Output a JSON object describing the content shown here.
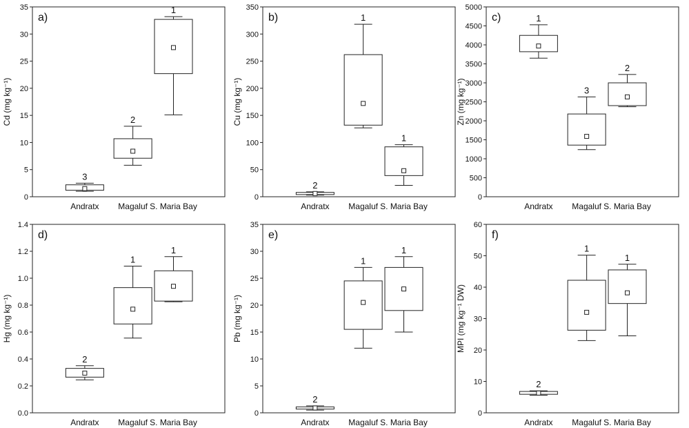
{
  "chart_data": [
    {
      "type": "box",
      "panel_label": "a)",
      "ylabel": "Cd (mg kg⁻¹)",
      "ylim": [
        0,
        35
      ],
      "yticks": [
        0,
        5,
        10,
        15,
        20,
        25,
        30,
        35
      ],
      "ytick_labels": [
        "0",
        "5",
        "10",
        "15",
        "20",
        "25",
        "30",
        "35"
      ],
      "categories": [
        "Andratx",
        "Magaluf",
        "S. Maria Bay"
      ],
      "boxes": [
        {
          "whisker_low": 1.0,
          "q1": 1.2,
          "median": 1.5,
          "q3": 2.2,
          "whisker_high": 2.5,
          "group": "3"
        },
        {
          "whisker_low": 5.8,
          "q1": 7.1,
          "median": 8.4,
          "q3": 10.7,
          "whisker_high": 13.0,
          "group": "2"
        },
        {
          "whisker_low": 15.1,
          "q1": 22.7,
          "median": 27.5,
          "q3": 32.7,
          "whisker_high": 33.2,
          "group": "1"
        }
      ]
    },
    {
      "type": "box",
      "panel_label": "b)",
      "ylabel": "Cu (mg kg⁻¹)",
      "ylim": [
        0,
        350
      ],
      "yticks": [
        0,
        50,
        100,
        150,
        200,
        250,
        300,
        350
      ],
      "ytick_labels": [
        "0",
        "50",
        "100",
        "150",
        "200",
        "250",
        "300",
        "350"
      ],
      "categories": [
        "Andratx",
        "Magaluf",
        "S. Maria Bay"
      ],
      "boxes": [
        {
          "whisker_low": 3,
          "q1": 4,
          "median": 6,
          "q3": 8,
          "whisker_high": 9,
          "group": "2"
        },
        {
          "whisker_low": 127,
          "q1": 132,
          "median": 172,
          "q3": 262,
          "whisker_high": 318,
          "group": "1"
        },
        {
          "whisker_low": 21,
          "q1": 39,
          "median": 48,
          "q3": 92,
          "whisker_high": 96,
          "group": "1"
        }
      ]
    },
    {
      "type": "box",
      "panel_label": "c)",
      "ylabel": "Zn (mg kg⁻¹)",
      "ylim": [
        0,
        5000
      ],
      "yticks": [
        0,
        500,
        1000,
        1500,
        2000,
        2500,
        3000,
        3500,
        4000,
        4500,
        5000
      ],
      "ytick_labels": [
        "0",
        "500",
        "1000",
        "1500",
        "2000",
        "2500",
        "3000",
        "3500",
        "4000",
        "4500",
        "5000"
      ],
      "categories": [
        "Andratx",
        "Magaluf",
        "S. Maria Bay"
      ],
      "boxes": [
        {
          "whisker_low": 3650,
          "q1": 3820,
          "median": 3970,
          "q3": 4250,
          "whisker_high": 4530,
          "group": "1"
        },
        {
          "whisker_low": 1240,
          "q1": 1360,
          "median": 1590,
          "q3": 2180,
          "whisker_high": 2630,
          "group": "3"
        },
        {
          "whisker_low": 2370,
          "q1": 2400,
          "median": 2630,
          "q3": 3000,
          "whisker_high": 3220,
          "group": "2"
        }
      ]
    },
    {
      "type": "box",
      "panel_label": "d)",
      "ylabel": "Hg (mg kg⁻¹)",
      "ylim": [
        0,
        1.4
      ],
      "yticks": [
        0,
        0.2,
        0.4,
        0.6,
        0.8,
        1.0,
        1.2,
        1.4
      ],
      "ytick_labels": [
        "0.0",
        "0.2",
        "0.4",
        "0.6",
        "0.8",
        "1.0",
        "1.2",
        "1.4"
      ],
      "categories": [
        "Andratx",
        "Magaluf",
        "S. Maria Bay"
      ],
      "boxes": [
        {
          "whisker_low": 0.245,
          "q1": 0.265,
          "median": 0.295,
          "q3": 0.33,
          "whisker_high": 0.35,
          "group": "2"
        },
        {
          "whisker_low": 0.555,
          "q1": 0.66,
          "median": 0.77,
          "q3": 0.93,
          "whisker_high": 1.09,
          "group": "1"
        },
        {
          "whisker_low": 0.825,
          "q1": 0.83,
          "median": 0.94,
          "q3": 1.055,
          "whisker_high": 1.16,
          "group": "1"
        }
      ]
    },
    {
      "type": "box",
      "panel_label": "e)",
      "ylabel": "Pb (mg kg⁻¹)",
      "ylim": [
        0,
        35
      ],
      "yticks": [
        0,
        5,
        10,
        15,
        20,
        25,
        30,
        35
      ],
      "ytick_labels": [
        "0",
        "5",
        "10",
        "15",
        "20",
        "25",
        "30",
        "35"
      ],
      "categories": [
        "Andratx",
        "Magaluf",
        "S. Maria Bay"
      ],
      "boxes": [
        {
          "whisker_low": 0.5,
          "q1": 0.7,
          "median": 0.9,
          "q3": 1.1,
          "whisker_high": 1.3,
          "group": "2"
        },
        {
          "whisker_low": 12.0,
          "q1": 15.5,
          "median": 20.5,
          "q3": 24.5,
          "whisker_high": 27.0,
          "group": "1"
        },
        {
          "whisker_low": 15.0,
          "q1": 19.0,
          "median": 23.0,
          "q3": 27.0,
          "whisker_high": 29.0,
          "group": "1"
        }
      ]
    },
    {
      "type": "box",
      "panel_label": "f)",
      "ylabel": "MPI (mg kg⁻¹ DW)",
      "ylim": [
        0,
        60
      ],
      "yticks": [
        0,
        10,
        20,
        30,
        40,
        50,
        60
      ],
      "ytick_labels": [
        "0",
        "10",
        "20",
        "30",
        "40",
        "50",
        "60"
      ],
      "categories": [
        "Andratx",
        "Magaluf",
        "S. Maria Bay"
      ],
      "boxes": [
        {
          "whisker_low": 5.6,
          "q1": 5.9,
          "median": 6.3,
          "q3": 6.8,
          "whisker_high": 7.0,
          "group": "2"
        },
        {
          "whisker_low": 23.0,
          "q1": 26.3,
          "median": 32.0,
          "q3": 42.2,
          "whisker_high": 50.2,
          "group": "1"
        },
        {
          "whisker_low": 24.5,
          "q1": 34.8,
          "median": 38.2,
          "q3": 45.5,
          "whisker_high": 47.3,
          "group": "1"
        }
      ]
    }
  ]
}
